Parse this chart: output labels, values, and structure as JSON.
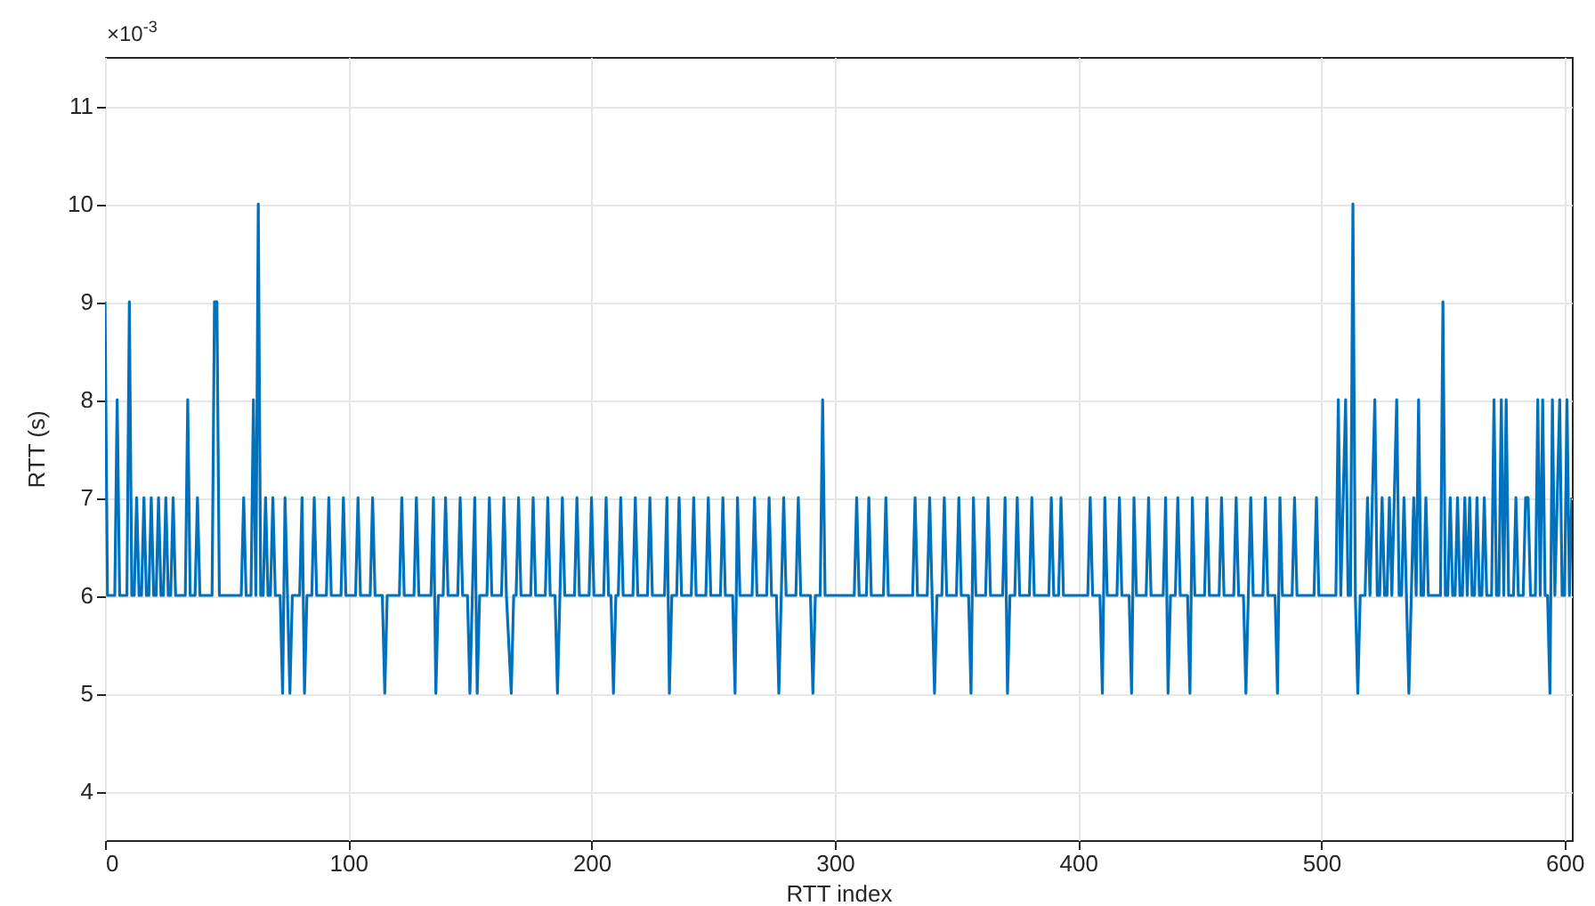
{
  "chart_data": {
    "type": "line",
    "xlabel": "RTT index",
    "ylabel": "RTT (s)",
    "annotations": [
      "×10$^{-3}$"
    ],
    "xlim": [
      0,
      603
    ],
    "xticks": [
      0,
      100,
      200,
      300,
      400,
      500,
      600
    ],
    "ylim": [
      3.5,
      11.5
    ],
    "yticks": [
      4,
      5,
      6,
      7,
      8,
      9,
      10,
      11
    ],
    "grid": true,
    "line_style": "solid",
    "x": [
      0,
      1,
      4,
      5,
      6,
      9,
      10,
      11,
      12,
      13,
      14,
      15,
      16,
      17,
      18,
      19,
      20,
      21,
      22,
      23,
      24,
      25,
      26,
      27,
      28,
      29,
      33,
      34,
      35,
      37,
      38,
      39,
      44,
      45,
      46,
      47,
      56,
      57,
      58,
      60,
      61,
      62,
      63,
      64,
      65,
      66,
      67,
      68,
      69,
      70,
      72,
      73,
      74,
      75,
      76,
      77,
      80,
      81,
      82,
      83,
      85,
      86,
      87,
      91,
      92,
      93,
      97,
      98,
      99,
      103,
      104,
      105,
      109,
      110,
      111,
      114,
      115,
      116,
      121,
      122,
      123,
      127,
      128,
      129,
      134,
      135,
      136,
      137,
      139,
      140,
      141,
      145,
      146,
      147,
      149,
      150,
      151,
      152,
      153,
      154,
      157,
      158,
      159,
      163,
      164,
      165,
      167,
      168,
      169,
      170,
      171,
      175,
      176,
      177,
      181,
      182,
      183,
      185,
      186,
      187,
      188,
      189,
      193,
      194,
      195,
      199,
      200,
      201,
      205,
      206,
      207,
      208,
      209,
      210,
      211,
      212,
      213,
      217,
      218,
      219,
      223,
      224,
      225,
      230,
      231,
      232,
      233,
      235,
      236,
      237,
      241,
      242,
      243,
      247,
      248,
      249,
      253,
      254,
      255,
      258,
      259,
      260,
      261,
      266,
      267,
      268,
      272,
      273,
      274,
      276,
      277,
      278,
      279,
      280,
      284,
      285,
      286,
      290,
      291,
      292,
      294,
      295,
      296,
      308,
      309,
      310,
      313,
      314,
      315,
      320,
      321,
      322,
      332,
      333,
      334,
      338,
      339,
      340,
      341,
      342,
      344,
      345,
      346,
      350,
      351,
      352,
      355,
      356,
      357,
      358,
      362,
      363,
      364,
      369,
      370,
      371,
      372,
      374,
      375,
      376,
      380,
      381,
      382,
      388,
      389,
      390,
      392,
      393,
      394,
      404,
      405,
      406,
      409,
      410,
      411,
      412,
      416,
      417,
      418,
      421,
      422,
      423,
      424,
      428,
      429,
      430,
      435,
      436,
      437,
      438,
      440,
      441,
      442,
      445,
      446,
      447,
      448,
      452,
      453,
      454,
      458,
      459,
      460,
      464,
      465,
      466,
      468,
      469,
      470,
      471,
      472,
      476,
      477,
      478,
      481,
      482,
      483,
      484,
      488,
      489,
      490,
      497,
      498,
      499,
      506,
      507,
      508,
      510,
      511,
      512,
      513,
      514,
      515,
      516,
      518,
      519,
      520,
      522,
      523,
      524,
      525,
      526,
      527,
      528,
      529,
      531,
      532,
      533,
      534,
      535,
      536,
      537,
      538,
      539,
      540,
      541,
      542,
      543,
      544,
      549,
      550,
      551,
      552,
      553,
      554,
      555,
      556,
      557,
      558,
      559,
      560,
      561,
      562,
      563,
      564,
      565,
      566,
      567,
      568,
      570,
      571,
      572,
      573,
      574,
      575,
      576,
      577,
      579,
      580,
      581,
      583,
      584,
      585,
      586,
      588,
      589,
      590,
      591,
      592,
      593,
      594,
      595,
      596,
      598,
      599,
      600,
      601,
      602,
      603
    ],
    "series": [
      {
        "color": "#0072bd",
        "values": [
          9,
          6,
          6,
          8,
          6,
          6,
          9,
          6,
          6,
          7,
          6,
          6,
          7,
          6,
          6,
          7,
          6,
          6,
          7,
          6,
          6,
          7,
          6,
          6,
          7,
          6,
          6,
          8,
          6,
          6,
          7,
          6,
          6,
          9,
          9,
          6,
          6,
          7,
          6,
          6,
          8,
          6,
          10,
          6,
          6,
          7,
          6,
          6,
          7,
          6,
          6,
          5,
          7,
          6,
          5,
          6,
          6,
          7,
          5,
          6,
          6,
          7,
          6,
          6,
          7,
          6,
          6,
          7,
          6,
          6,
          7,
          6,
          6,
          7,
          6,
          6,
          5,
          6,
          6,
          7,
          6,
          6,
          7,
          6,
          6,
          7,
          5,
          6,
          6,
          7,
          6,
          6,
          7,
          6,
          6,
          5,
          6,
          7,
          5,
          6,
          6,
          7,
          6,
          6,
          7,
          6,
          5,
          6,
          6,
          7,
          6,
          6,
          7,
          6,
          6,
          7,
          6,
          6,
          5,
          6,
          7,
          6,
          6,
          7,
          6,
          6,
          7,
          6,
          6,
          7,
          6,
          6,
          5,
          6,
          6,
          7,
          6,
          6,
          7,
          6,
          6,
          7,
          6,
          6,
          7,
          5,
          6,
          6,
          7,
          6,
          6,
          7,
          6,
          6,
          7,
          6,
          6,
          7,
          6,
          6,
          5,
          7,
          6,
          6,
          7,
          6,
          6,
          7,
          6,
          6,
          5,
          6,
          7,
          6,
          6,
          7,
          6,
          6,
          5,
          6,
          6,
          8,
          6,
          6,
          7,
          6,
          6,
          7,
          6,
          6,
          7,
          6,
          6,
          7,
          6,
          6,
          7,
          6,
          5,
          6,
          6,
          7,
          6,
          6,
          7,
          6,
          6,
          5,
          7,
          6,
          6,
          7,
          6,
          6,
          7,
          5,
          6,
          6,
          7,
          6,
          6,
          7,
          6,
          6,
          7,
          6,
          6,
          7,
          6,
          6,
          7,
          6,
          6,
          5,
          7,
          6,
          6,
          7,
          6,
          6,
          5,
          7,
          6,
          6,
          7,
          6,
          6,
          7,
          5,
          6,
          6,
          7,
          6,
          6,
          5,
          7,
          6,
          6,
          7,
          6,
          6,
          7,
          6,
          6,
          7,
          6,
          6,
          5,
          6,
          7,
          6,
          6,
          7,
          6,
          6,
          5,
          7,
          6,
          6,
          7,
          6,
          6,
          7,
          6,
          6,
          8,
          6,
          8,
          6,
          6,
          10,
          6,
          5,
          6,
          6,
          7,
          6,
          8,
          6,
          6,
          7,
          6,
          6,
          7,
          6,
          8,
          6,
          6,
          7,
          6,
          5,
          6,
          7,
          6,
          8,
          6,
          6,
          7,
          6,
          6,
          9,
          6,
          6,
          7,
          6,
          6,
          7,
          6,
          6,
          7,
          6,
          7,
          6,
          6,
          7,
          6,
          6,
          7,
          6,
          6,
          8,
          6,
          6,
          8,
          6,
          8,
          6,
          6,
          7,
          6,
          6,
          7,
          7,
          6,
          6,
          8,
          6,
          8,
          6,
          6,
          5,
          8,
          6,
          8,
          6,
          6,
          8,
          6,
          7
        ]
      }
    ]
  }
}
